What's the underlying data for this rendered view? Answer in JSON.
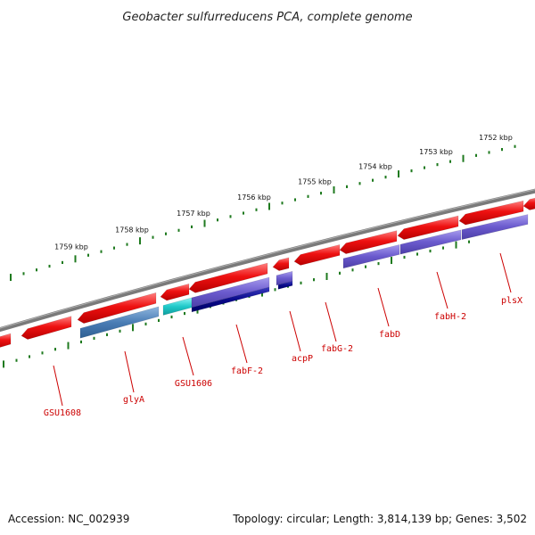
{
  "title": "Geobacter sulfurreducens PCA, complete genome",
  "footer": {
    "accession": "Accession: NC_002939",
    "summary": "Topology: circular; Length: 3,814,139 bp; Genes: 3,502"
  },
  "ruler": {
    "labels": [
      "1759 kbp",
      "1758 kbp",
      "1757 kbp",
      "1756 kbp",
      "1755 kbp",
      "1754 kbp",
      "1753 kbp",
      "1752 kbp"
    ]
  },
  "genes": {
    "labels": [
      "GSU1608",
      "glyA",
      "GSU1606",
      "fabF-2",
      "acpP",
      "fabG-2",
      "fabD",
      "fabH-2",
      "plsX"
    ]
  },
  "colors": {
    "backbone": "#7a7a7a",
    "ruler": "#1f7a1f",
    "cds": "#ee1111",
    "cog_blue": "#4a7db5",
    "cog_cyan": "#1fc9c9",
    "cog_purple": "#6a5acd",
    "cog_navy": "#0a0a8a",
    "label": "#cc0000"
  }
}
